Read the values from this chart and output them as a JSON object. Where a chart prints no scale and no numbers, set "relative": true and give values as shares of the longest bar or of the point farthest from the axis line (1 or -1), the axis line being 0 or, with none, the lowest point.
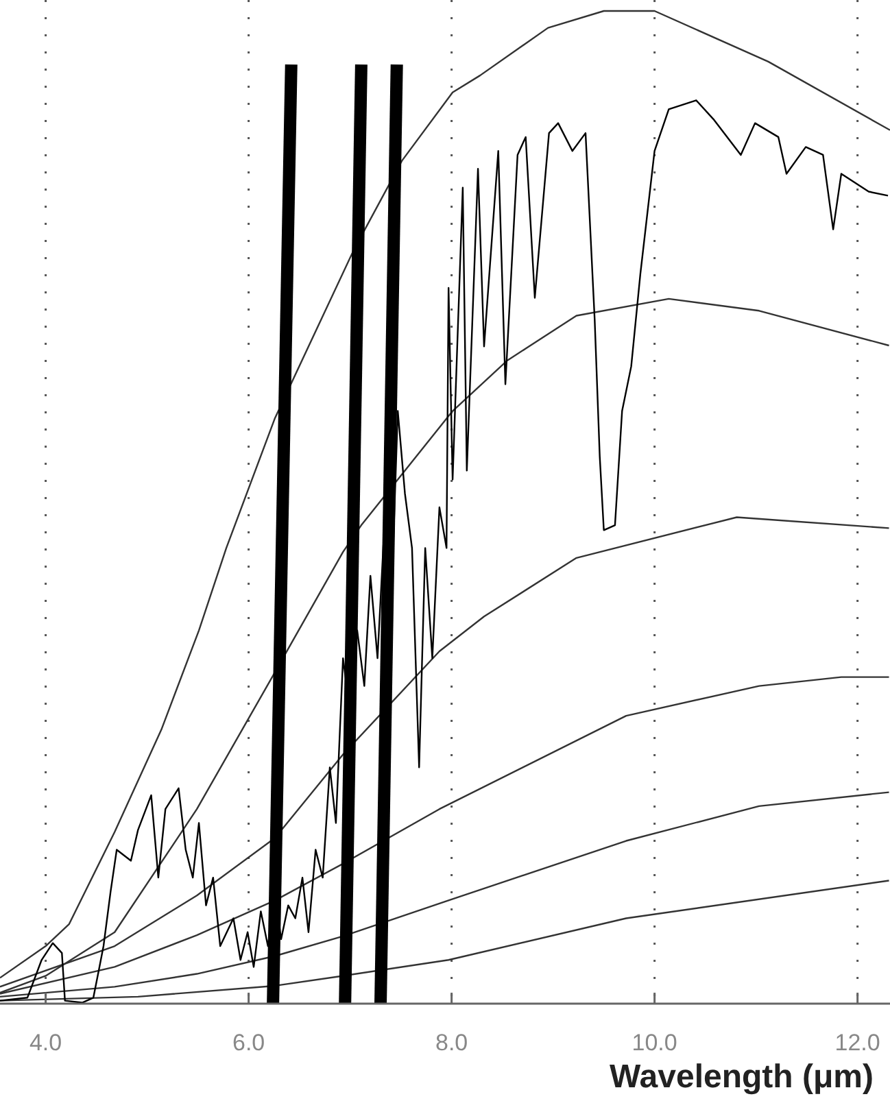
{
  "chart_data": {
    "type": "line",
    "xlabel": "Wavelength (μm)",
    "relative": true,
    "xlim": [
      3.55,
      12.32
    ],
    "xticks": [
      {
        "value": 4,
        "label": "4.0"
      },
      {
        "value": 6,
        "label": "6.0"
      },
      {
        "value": 8,
        "label": "8.0"
      },
      {
        "value": 10,
        "label": "10.0"
      },
      {
        "value": 12,
        "label": "12.0"
      }
    ],
    "grid": "x",
    "marker": "none",
    "line_style": "solid",
    "series": [
      {
        "color": "#333333",
        "x": [
          3.55,
          4.0,
          4.23,
          4.68,
          5.14,
          5.51,
          5.78,
          6.26,
          7.03,
          7.51,
          8.01,
          8.28,
          8.95,
          9.5,
          10.0,
          11.12,
          12.32
        ],
        "values": [
          0.026,
          0.058,
          0.08,
          0.173,
          0.276,
          0.376,
          0.459,
          0.59,
          0.758,
          0.849,
          0.918,
          0.935,
          0.983,
          1.0,
          1.0,
          0.949,
          0.88
        ]
      },
      {
        "color": "#333333",
        "x": [
          3.55,
          4.0,
          4.68,
          5.49,
          6.26,
          6.93,
          7.11,
          8.01,
          8.55,
          9.23,
          10.14,
          11.03,
          12.31
        ],
        "values": [
          0.011,
          0.028,
          0.072,
          0.196,
          0.334,
          0.455,
          0.482,
          0.597,
          0.648,
          0.693,
          0.71,
          0.698,
          0.663
        ]
      },
      {
        "color": "#333333",
        "x": [
          3.55,
          4.68,
          5.49,
          6.26,
          6.93,
          7.88,
          8.32,
          9.23,
          10.81,
          12.31
        ],
        "values": [
          0.017,
          0.058,
          0.109,
          0.167,
          0.251,
          0.355,
          0.39,
          0.449,
          0.49,
          0.479
        ]
      },
      {
        "color": "#333333",
        "x": [
          3.55,
          4.68,
          5.49,
          6.26,
          6.93,
          7.88,
          9.72,
          11.03,
          11.84,
          12.31
        ],
        "values": [
          0.01,
          0.037,
          0.069,
          0.104,
          0.141,
          0.196,
          0.29,
          0.32,
          0.329,
          0.329
        ]
      },
      {
        "color": "#333333",
        "x": [
          3.55,
          4.68,
          5.49,
          6.26,
          6.93,
          7.97,
          9.72,
          11.03,
          12.31
        ],
        "values": [
          0.007,
          0.017,
          0.03,
          0.048,
          0.068,
          0.104,
          0.164,
          0.199,
          0.213
        ]
      },
      {
        "color": "#333333",
        "x": [
          3.55,
          4.91,
          6.26,
          6.93,
          7.97,
          9.72,
          12.31
        ],
        "values": [
          0.003,
          0.007,
          0.018,
          0.028,
          0.044,
          0.086,
          0.124
        ]
      },
      {
        "color": "#000000",
        "x": [
          3.55,
          3.82,
          3.96,
          4.07,
          4.16,
          4.19,
          4.36,
          4.47,
          4.53,
          4.57,
          4.64,
          4.7,
          4.84,
          4.91,
          5.04,
          5.11,
          5.18,
          5.31,
          5.38,
          5.45,
          5.51,
          5.58,
          5.65,
          5.72,
          5.85,
          5.92,
          5.99,
          6.05,
          6.12,
          6.19,
          6.26,
          6.32,
          6.39,
          6.46,
          6.53,
          6.59,
          6.66,
          6.73,
          6.8,
          6.86,
          6.93,
          7.0,
          7.07,
          7.14,
          7.2,
          7.27,
          7.34,
          7.41,
          7.47,
          7.54,
          7.61,
          7.68,
          7.74,
          7.81,
          7.88,
          7.95,
          7.97,
          8.01,
          8.11,
          8.15,
          8.26,
          8.32,
          8.46,
          8.53,
          8.65,
          8.73,
          8.82,
          8.96,
          9.05,
          9.19,
          9.32,
          9.41,
          9.46,
          9.5,
          9.61,
          9.68,
          9.77,
          9.86,
          10.0,
          10.14,
          10.41,
          10.58,
          10.85,
          10.99,
          11.22,
          11.3,
          11.49,
          11.66,
          11.76,
          11.84,
          12.11,
          12.3
        ],
        "values": [
          0.003,
          0.006,
          0.044,
          0.061,
          0.051,
          0.003,
          0.001,
          0.006,
          0.037,
          0.058,
          0.113,
          0.155,
          0.144,
          0.175,
          0.21,
          0.127,
          0.196,
          0.217,
          0.155,
          0.127,
          0.182,
          0.099,
          0.127,
          0.058,
          0.086,
          0.044,
          0.072,
          0.037,
          0.093,
          0.058,
          0.113,
          0.065,
          0.099,
          0.086,
          0.127,
          0.072,
          0.155,
          0.127,
          0.238,
          0.182,
          0.348,
          0.293,
          0.376,
          0.32,
          0.431,
          0.348,
          0.486,
          0.417,
          0.597,
          0.514,
          0.459,
          0.238,
          0.459,
          0.348,
          0.5,
          0.459,
          0.721,
          0.528,
          0.822,
          0.537,
          0.841,
          0.662,
          0.859,
          0.624,
          0.855,
          0.873,
          0.711,
          0.877,
          0.887,
          0.859,
          0.877,
          0.689,
          0.551,
          0.477,
          0.482,
          0.597,
          0.642,
          0.735,
          0.859,
          0.901,
          0.91,
          0.891,
          0.855,
          0.887,
          0.873,
          0.836,
          0.863,
          0.855,
          0.78,
          0.836,
          0.818,
          0.814
        ]
      },
      {
        "color": "#000000",
        "x": [
          6.24,
          6.42
        ],
        "values": [
          0,
          0.946
        ]
      },
      {
        "color": "#000000",
        "x": [
          6.95,
          7.11
        ],
        "values": [
          0,
          0.946
        ]
      },
      {
        "color": "#000000",
        "x": [
          7.3,
          7.46
        ],
        "values": [
          0,
          0.946
        ]
      }
    ]
  }
}
